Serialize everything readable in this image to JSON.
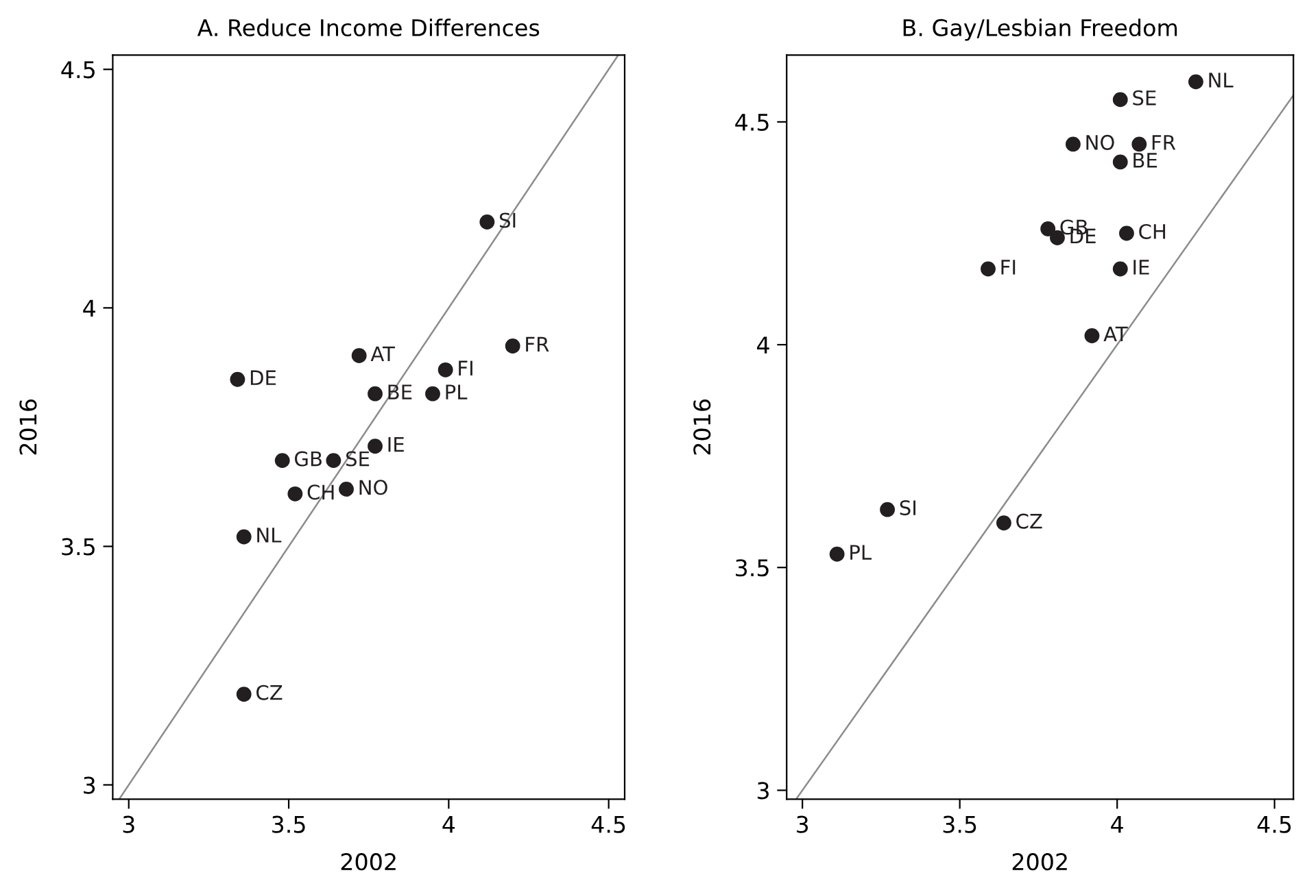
{
  "chart_data": [
    {
      "type": "scatter",
      "title": "A. Reduce Income Differences",
      "xlabel": "2002",
      "ylabel": "2016",
      "xlim": [
        2.95,
        4.55
      ],
      "ylim": [
        2.97,
        4.53
      ],
      "xticks": [
        3,
        3.5,
        4,
        4.5
      ],
      "yticks": [
        3,
        3.5,
        4,
        4.5
      ],
      "grid": false,
      "series": [
        {
          "marker": "circle",
          "color": "#231f20",
          "x": [
            4.12,
            4.2,
            3.72,
            3.99,
            3.34,
            3.77,
            3.95,
            3.77,
            3.64,
            3.48,
            3.52,
            3.68,
            3.36,
            3.36
          ],
          "values": [
            4.18,
            3.92,
            3.9,
            3.87,
            3.85,
            3.82,
            3.82,
            3.71,
            3.68,
            3.68,
            3.61,
            3.62,
            3.52,
            3.19
          ]
        },
        {
          "type": "line",
          "color": "#8c8c8c",
          "x": [
            2.97,
            4.53
          ],
          "values": [
            2.97,
            4.53
          ]
        }
      ],
      "annotations": [
        {
          "text": "SI",
          "x": 4.12,
          "y": 4.18
        },
        {
          "text": "FR",
          "x": 4.2,
          "y": 3.92
        },
        {
          "text": "AT",
          "x": 3.72,
          "y": 3.9
        },
        {
          "text": "FI",
          "x": 3.99,
          "y": 3.87
        },
        {
          "text": "DE",
          "x": 3.34,
          "y": 3.85
        },
        {
          "text": "BE",
          "x": 3.77,
          "y": 3.82
        },
        {
          "text": "PL",
          "x": 3.95,
          "y": 3.82
        },
        {
          "text": "IE",
          "x": 3.77,
          "y": 3.71
        },
        {
          "text": "SE",
          "x": 3.64,
          "y": 3.68
        },
        {
          "text": "GB",
          "x": 3.48,
          "y": 3.68
        },
        {
          "text": "CH",
          "x": 3.52,
          "y": 3.61
        },
        {
          "text": "NO",
          "x": 3.68,
          "y": 3.62
        },
        {
          "text": "NL",
          "x": 3.36,
          "y": 3.52
        },
        {
          "text": "CZ",
          "x": 3.36,
          "y": 3.19
        }
      ]
    },
    {
      "type": "scatter",
      "title": "B. Gay/Lesbian Freedom",
      "xlabel": "2002",
      "ylabel": "2016",
      "xlim": [
        2.95,
        4.56
      ],
      "ylim": [
        2.98,
        4.65
      ],
      "xticks": [
        3,
        3.5,
        4,
        4.5
      ],
      "yticks": [
        3,
        3.5,
        4,
        4.5
      ],
      "grid": false,
      "series": [
        {
          "marker": "circle",
          "color": "#231f20",
          "x": [
            4.25,
            4.01,
            3.86,
            4.07,
            4.01,
            3.78,
            3.81,
            4.03,
            3.59,
            4.01,
            3.92,
            3.27,
            3.64,
            3.11
          ],
          "values": [
            4.59,
            4.55,
            4.45,
            4.45,
            4.41,
            4.26,
            4.24,
            4.25,
            4.17,
            4.17,
            4.02,
            3.63,
            3.6,
            3.53
          ]
        },
        {
          "type": "line",
          "color": "#8c8c8c",
          "x": [
            2.98,
            4.56
          ],
          "values": [
            2.98,
            4.56
          ]
        }
      ],
      "annotations": [
        {
          "text": "NL",
          "x": 4.25,
          "y": 4.59
        },
        {
          "text": "SE",
          "x": 4.01,
          "y": 4.55
        },
        {
          "text": "NO",
          "x": 3.86,
          "y": 4.45
        },
        {
          "text": "FR",
          "x": 4.07,
          "y": 4.45
        },
        {
          "text": "BE",
          "x": 4.01,
          "y": 4.41
        },
        {
          "text": "GB",
          "x": 3.78,
          "y": 4.26
        },
        {
          "text": "DE",
          "x": 3.81,
          "y": 4.24
        },
        {
          "text": "CH",
          "x": 4.03,
          "y": 4.25
        },
        {
          "text": "FI",
          "x": 3.59,
          "y": 4.17
        },
        {
          "text": "IE",
          "x": 4.01,
          "y": 4.17
        },
        {
          "text": "AT",
          "x": 3.92,
          "y": 4.02
        },
        {
          "text": "SI",
          "x": 3.27,
          "y": 3.63
        },
        {
          "text": "CZ",
          "x": 3.64,
          "y": 3.6
        },
        {
          "text": "PL",
          "x": 3.11,
          "y": 3.53
        }
      ]
    }
  ]
}
